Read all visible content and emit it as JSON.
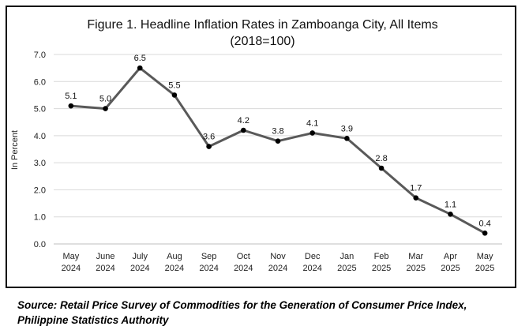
{
  "chart_data": {
    "type": "line",
    "title_line1": "Figure 1. Headline Inflation Rates in Zamboanga City, All Items",
    "title_line2": "(2018=100)",
    "ylabel": "In Percent",
    "xlabel": "",
    "ylim": [
      0,
      7
    ],
    "yticks": [
      "0.0",
      "1.0",
      "2.0",
      "3.0",
      "4.0",
      "5.0",
      "6.0",
      "7.0"
    ],
    "categories": [
      [
        "May",
        "2024"
      ],
      [
        "June",
        "2024"
      ],
      [
        "July",
        "2024"
      ],
      [
        "Aug",
        "2024"
      ],
      [
        "Sep",
        "2024"
      ],
      [
        "Oct",
        "2024"
      ],
      [
        "Nov",
        "2024"
      ],
      [
        "Dec",
        "2024"
      ],
      [
        "Jan",
        "2025"
      ],
      [
        "Feb",
        "2025"
      ],
      [
        "Mar",
        "2025"
      ],
      [
        "Apr",
        "2025"
      ],
      [
        "May",
        "2025"
      ]
    ],
    "values": [
      5.1,
      5.0,
      6.5,
      5.5,
      3.6,
      4.2,
      3.8,
      4.1,
      3.9,
      2.8,
      1.7,
      1.1,
      0.4
    ],
    "data_labels": [
      "5.1",
      "5.0",
      "6.5",
      "5.5",
      "3.6",
      "4.2",
      "3.8",
      "4.1",
      "3.9",
      "2.8",
      "1.7",
      "1.1",
      "0.4"
    ],
    "grid": true,
    "line_color": "#595959",
    "marker_color": "#000000",
    "grid_color": "#d9d9d9"
  },
  "source_note": "Source: Retail Price Survey of Commodities for the Generation of Consumer Price Index, Philippine Statistics Authority"
}
